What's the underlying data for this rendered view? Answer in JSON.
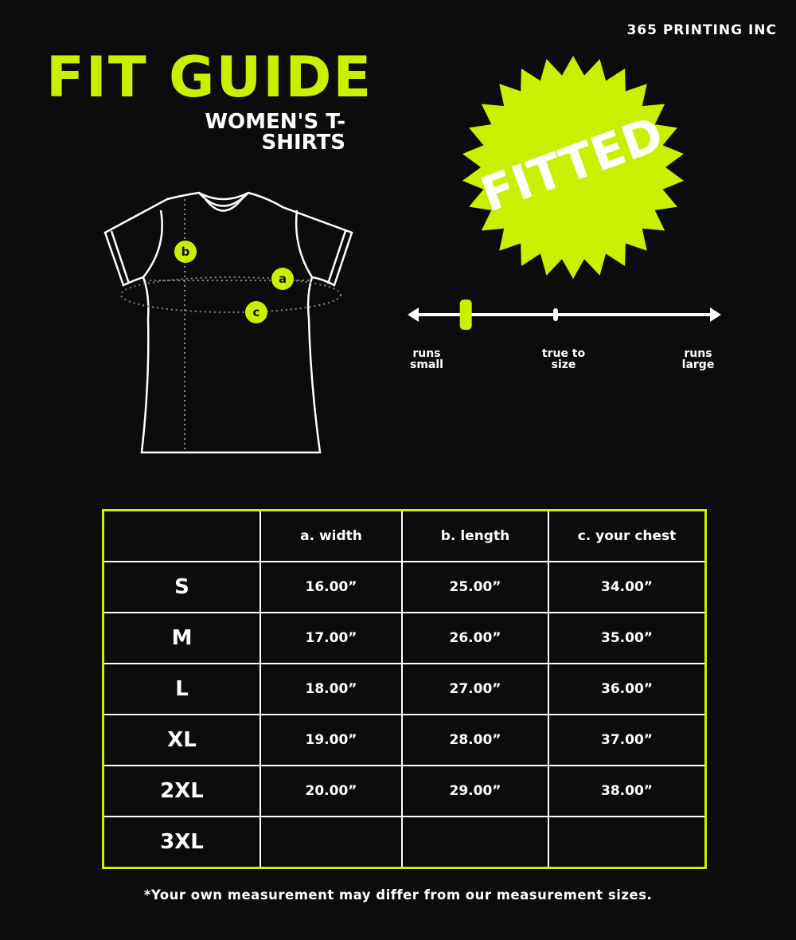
{
  "brand": "365 PRINTING INC",
  "title": "FIT GUIDE",
  "subtitle": "WOMEN'S T-SHIRTS",
  "badge": "FITTED",
  "diagram_markers": [
    "a",
    "b",
    "c"
  ],
  "fit_scale": {
    "labels": [
      {
        "line1": "runs",
        "line2": "small"
      },
      {
        "line1": "true to",
        "line2": "size"
      },
      {
        "line1": "runs",
        "line2": "large"
      }
    ],
    "fit_position": 0.18
  },
  "table": {
    "headers": [
      "",
      "a. width",
      "b. length",
      "c. your chest"
    ],
    "rows": [
      [
        "S",
        "16.00”",
        "25.00”",
        "34.00”"
      ],
      [
        "M",
        "17.00”",
        "26.00”",
        "35.00”"
      ],
      [
        "L",
        "18.00”",
        "27.00”",
        "36.00”"
      ],
      [
        "XL",
        "19.00”",
        "28.00”",
        "37.00”"
      ],
      [
        "2XL",
        "20.00”",
        "29.00”",
        "38.00”"
      ],
      [
        "3XL",
        "",
        "",
        ""
      ]
    ]
  },
  "footnote": "*Your own measurement may differ from our measurement sizes.",
  "colors": {
    "accent": "#c8f000",
    "background": "#0c0c0c",
    "text": "#ffffff"
  }
}
